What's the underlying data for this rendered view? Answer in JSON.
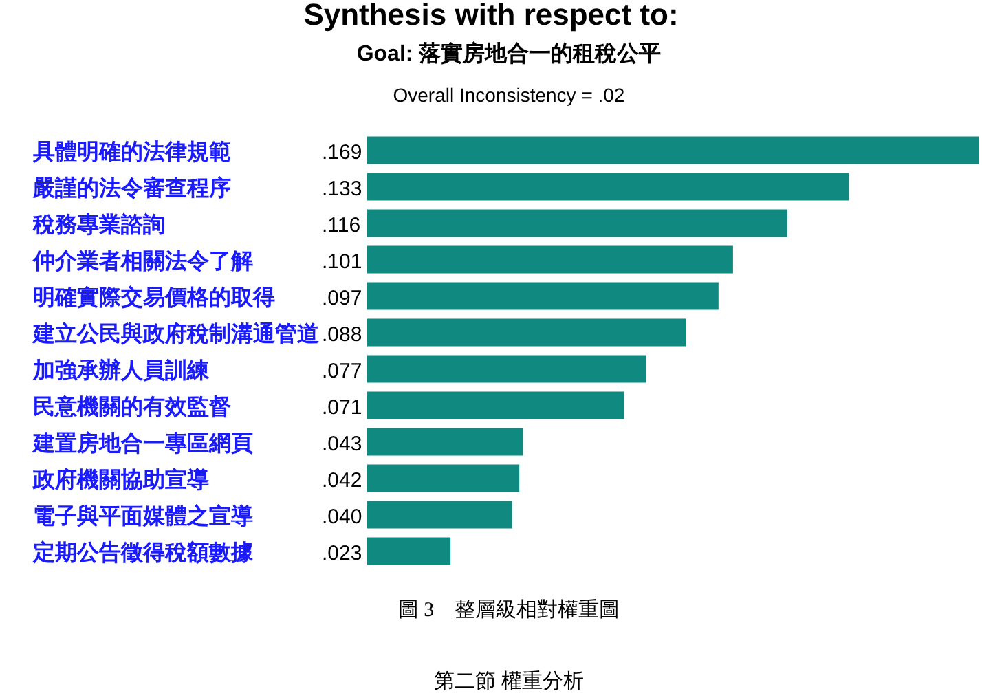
{
  "chart_data": {
    "type": "bar",
    "orientation": "horizontal",
    "title": "Synthesis with respect to:",
    "subtitle": "Goal: 落實房地合一的租稅公平",
    "annotations": [
      "Overall Inconsistency = .02",
      "圖 3　整層級相對權重圖",
      "第二節 權重分析"
    ],
    "categories": [
      "具體明確的法律規範",
      "嚴謹的法令審查程序",
      "稅務專業諮詢",
      "仲介業者相關法令了解",
      "明確實際交易價格的取得",
      "建立公民與政府稅制溝通管道",
      "加強承辦人員訓練",
      "民意機關的有效監督",
      "建置房地合一專區網頁",
      "政府機關協助宣導",
      "電子與平面媒體之宣導",
      "定期公告徵得稅額數據"
    ],
    "values": [
      0.169,
      0.133,
      0.116,
      0.101,
      0.097,
      0.088,
      0.077,
      0.071,
      0.043,
      0.042,
      0.04,
      0.023
    ],
    "value_labels": [
      ".169",
      ".133",
      ".116",
      ".101",
      ".097",
      ".088",
      ".077",
      ".071",
      ".043",
      ".042",
      ".040",
      ".023"
    ],
    "color": "#108a80"
  }
}
